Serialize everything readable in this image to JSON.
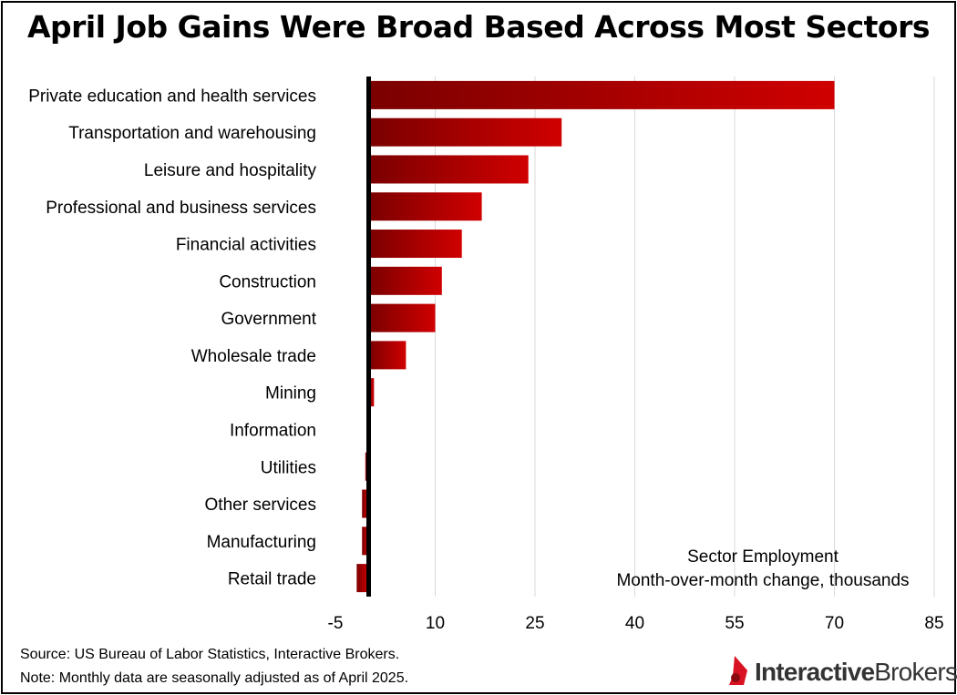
{
  "title": "April Job Gains Were Broad Based Across Most Sectors",
  "chart_data": {
    "type": "bar",
    "orientation": "horizontal",
    "categories": [
      "Private education and health services",
      "Transportation and warehousing",
      "Leisure and hospitality",
      "Professional and business services",
      "Financial activities",
      "Construction",
      "Government",
      "Wholesale trade",
      "Mining",
      "Information",
      "Utilities",
      "Other services",
      "Manufacturing",
      "Retail trade"
    ],
    "values": [
      70,
      29,
      24,
      17,
      14,
      11,
      10,
      5.6,
      0.8,
      0,
      -0.5,
      -1,
      -1,
      -1.8
    ],
    "xlim": [
      -5,
      85
    ],
    "xticks": [
      -5,
      10,
      25,
      40,
      55,
      70,
      85
    ],
    "xtick_labels": [
      "-5",
      "10",
      "25",
      "40",
      "55",
      "70",
      "85"
    ],
    "grid": "vertical",
    "annotation": [
      "Sector Employment",
      "Month-over-month change, thousands"
    ],
    "colors": {
      "bar_light": "#d00000",
      "bar_dark": "#7a0000",
      "zero_line": "#000000",
      "grid": "#d9d9d9"
    }
  },
  "footer": {
    "source": "Source: US Bureau of Labor Statistics, Interactive Brokers.",
    "note": "Note: Monthly data are seasonally adjusted as of April 2025."
  },
  "logo": {
    "name": "Interactive Brokers",
    "icon": "ib-flame-icon",
    "color": "#d81222"
  }
}
